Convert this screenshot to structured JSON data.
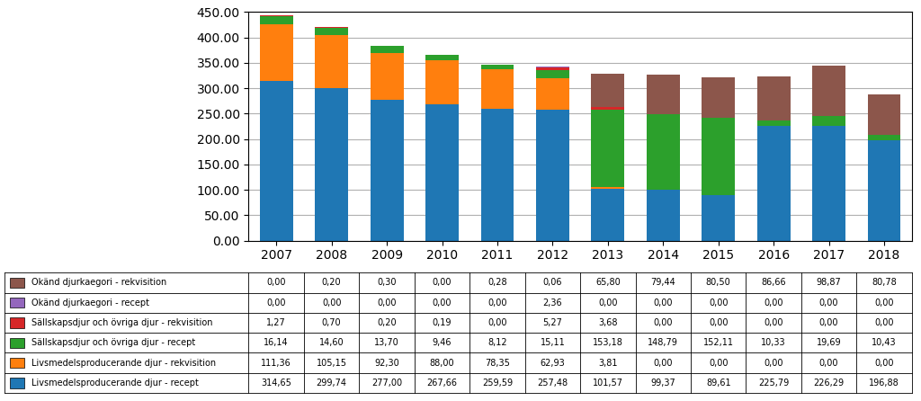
{
  "chart_data": {
    "type": "bar",
    "stacked": true,
    "grid": true,
    "categories": [
      "2007",
      "2008",
      "2009",
      "2010",
      "2011",
      "2012",
      "2013",
      "2014",
      "2015",
      "2016",
      "2017",
      "2018"
    ],
    "series": [
      {
        "name": "Livsmedelsproducerande djur - recept",
        "values": [
          314.65,
          299.74,
          277.0,
          267.66,
          259.59,
          257.48,
          101.57,
          99.37,
          89.61,
          225.79,
          226.29,
          196.88
        ],
        "value_labels": [
          "314,65",
          "299,74",
          "277,00",
          "267,66",
          "259,59",
          "257,48",
          "101,57",
          "99,37",
          "89,61",
          "225,79",
          "226,29",
          "196,88"
        ]
      },
      {
        "name": "Livsmedelsproducerande djur - rekvisition",
        "values": [
          111.36,
          105.15,
          92.3,
          88.0,
          78.35,
          62.93,
          3.81,
          0.0,
          0.0,
          0.0,
          0.0,
          0.0
        ],
        "value_labels": [
          "111,36",
          "105,15",
          "92,30",
          "88,00",
          "78,35",
          "62,93",
          "3,81",
          "0,00",
          "0,00",
          "0,00",
          "0,00",
          "0,00"
        ]
      },
      {
        "name": "Sällskapsdjur och övriga djur - recept",
        "values": [
          16.14,
          14.6,
          13.7,
          9.46,
          8.12,
          15.11,
          153.18,
          148.79,
          152.11,
          10.33,
          19.69,
          10.43
        ],
        "value_labels": [
          "16,14",
          "14,60",
          "13,70",
          "9,46",
          "8,12",
          "15,11",
          "153,18",
          "148,79",
          "152,11",
          "10,33",
          "19,69",
          "10,43"
        ]
      },
      {
        "name": "Sällskapsdjur och övriga djur - rekvisition",
        "values": [
          1.27,
          0.7,
          0.2,
          0.19,
          0.0,
          5.27,
          3.68,
          0.0,
          0.0,
          0.0,
          0.0,
          0.0
        ],
        "value_labels": [
          "1,27",
          "0,70",
          "0,20",
          "0,19",
          "0,00",
          "5,27",
          "3,68",
          "0,00",
          "0,00",
          "0,00",
          "0,00",
          "0,00"
        ]
      },
      {
        "name": "Okänd djurkaegori - recept",
        "values": [
          0.0,
          0.0,
          0.0,
          0.0,
          0.0,
          2.36,
          0.0,
          0.0,
          0.0,
          0.0,
          0.0,
          0.0
        ],
        "value_labels": [
          "0,00",
          "0,00",
          "0,00",
          "0,00",
          "0,00",
          "2,36",
          "0,00",
          "0,00",
          "0,00",
          "0,00",
          "0,00",
          "0,00"
        ]
      },
      {
        "name": "Okänd djurkaegori - rekvisition",
        "values": [
          0.0,
          0.2,
          0.3,
          0.0,
          0.28,
          0.06,
          65.8,
          79.44,
          80.5,
          86.66,
          98.87,
          80.78
        ],
        "value_labels": [
          "0,00",
          "0,20",
          "0,30",
          "0,00",
          "0,28",
          "0,06",
          "65,80",
          "79,44",
          "80,50",
          "86,66",
          "98,87",
          "80,78"
        ]
      }
    ],
    "ylim": [
      0,
      450
    ],
    "yticks": [
      {
        "value": 0,
        "label": "0.00"
      },
      {
        "value": 50,
        "label": "50.00"
      },
      {
        "value": 100,
        "label": "100.00"
      },
      {
        "value": 150,
        "label": "150.00"
      },
      {
        "value": 200,
        "label": "200.00"
      },
      {
        "value": 250,
        "label": "250.00"
      },
      {
        "value": 300,
        "label": "300.00"
      },
      {
        "value": 350,
        "label": "350.00"
      },
      {
        "value": 400,
        "label": "400.00"
      },
      {
        "value": 450,
        "label": "450.00"
      }
    ]
  }
}
